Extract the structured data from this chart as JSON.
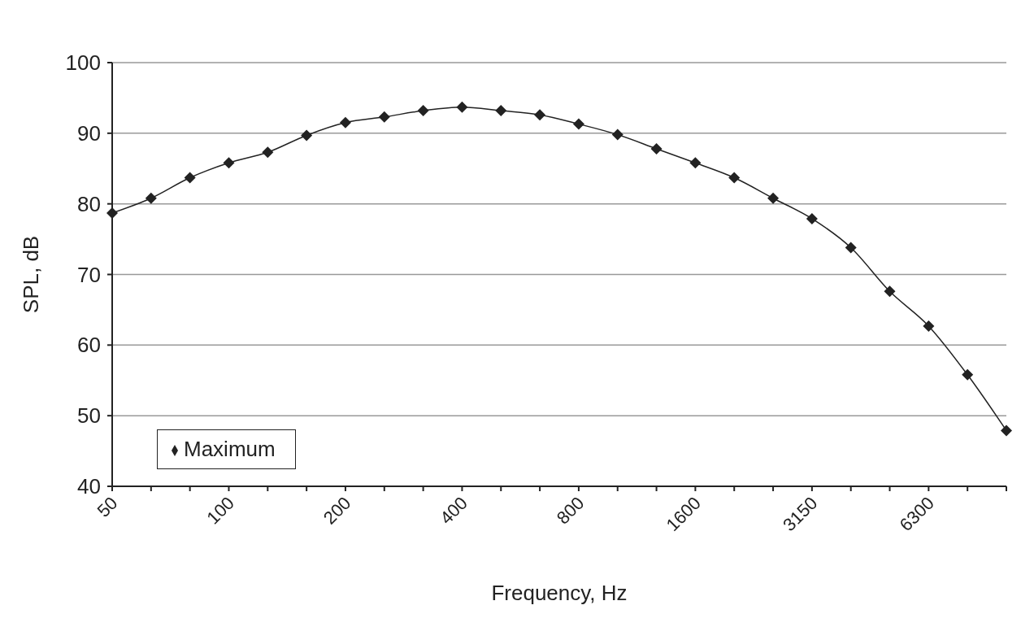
{
  "chart_data": {
    "type": "line",
    "xlabel": "Frequency, Hz",
    "ylabel": "SPL, dB",
    "categories": [
      "50",
      null,
      null,
      "100",
      null,
      null,
      "200",
      null,
      null,
      "400",
      null,
      null,
      "800",
      null,
      null,
      "1600",
      null,
      null,
      "3150",
      null,
      null,
      "6300",
      null,
      null
    ],
    "series": [
      {
        "name": "Maximum",
        "color": "#222222",
        "values": [
          78.7,
          80.8,
          83.7,
          85.8,
          87.3,
          89.7,
          91.5,
          92.3,
          93.2,
          93.7,
          93.2,
          92.6,
          91.3,
          89.8,
          87.8,
          85.8,
          83.7,
          80.8,
          77.9,
          73.8,
          67.6,
          62.7,
          55.8,
          47.9
        ]
      }
    ],
    "ylim": [
      40,
      100
    ],
    "yticks": [
      40,
      50,
      60,
      70,
      80,
      90,
      100
    ],
    "grid": "y",
    "legend": "bottom left",
    "marker": "diamond",
    "line_style": "solid"
  }
}
